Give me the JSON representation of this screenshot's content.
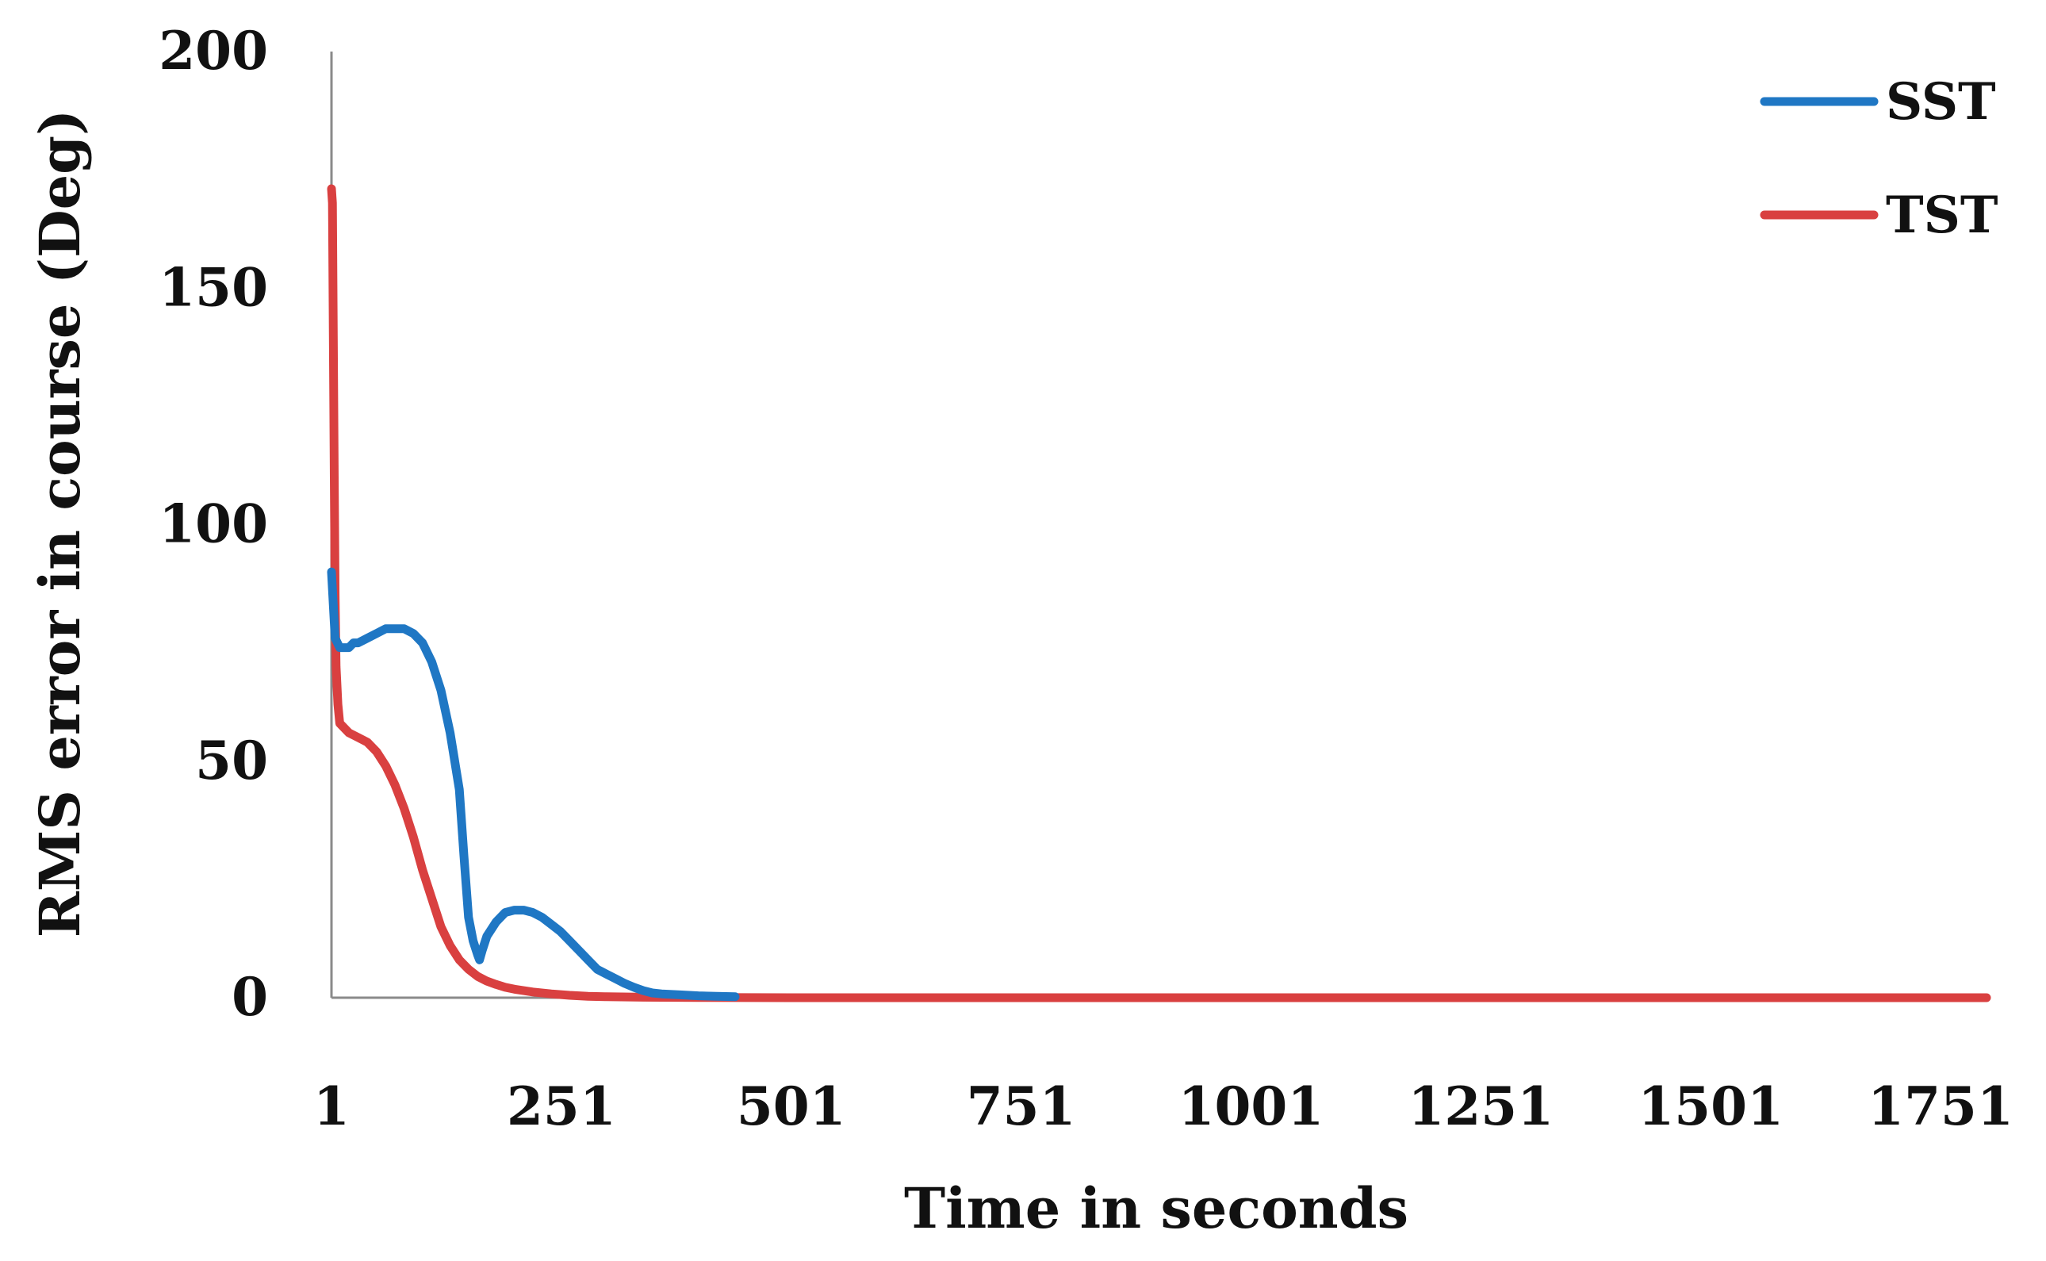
{
  "chart_data": {
    "type": "line",
    "xlabel": "Time in seconds",
    "ylabel": "RMS error in course (Deg)",
    "xlim": [
      1,
      1801
    ],
    "ylim": [
      0,
      200
    ],
    "x_ticks": [
      "1",
      "251",
      "501",
      "751",
      "1001",
      "1251",
      "1501",
      "1751"
    ],
    "y_ticks": [
      "0",
      "50",
      "100",
      "150",
      "200"
    ],
    "grid": false,
    "legend_position": "top-right",
    "series": [
      {
        "name": "SST",
        "color": "#1f77c4",
        "x": [
          1,
          5,
          10,
          15,
          20,
          25,
          30,
          40,
          50,
          60,
          70,
          80,
          90,
          100,
          110,
          120,
          130,
          140,
          145,
          150,
          155,
          160,
          162,
          165,
          170,
          180,
          190,
          200,
          210,
          220,
          230,
          240,
          250,
          260,
          270,
          280,
          290,
          300,
          310,
          320,
          330,
          340,
          350,
          360,
          380,
          400,
          420,
          440
        ],
        "values": [
          90,
          76,
          74,
          74,
          74,
          75,
          75,
          76,
          77,
          78,
          78,
          78,
          77,
          75,
          71,
          65,
          56,
          44,
          30,
          17,
          12,
          9,
          8,
          10,
          13,
          16,
          18,
          18.5,
          18.5,
          18,
          17,
          15.5,
          14,
          12,
          10,
          8,
          6,
          5,
          4,
          3,
          2.2,
          1.5,
          1,
          0.8,
          0.6,
          0.4,
          0.3,
          0.2
        ]
      },
      {
        "name": "TST",
        "color": "#d94040",
        "x": [
          1,
          2,
          3,
          4,
          5,
          6,
          8,
          10,
          15,
          20,
          30,
          40,
          50,
          60,
          70,
          80,
          90,
          100,
          110,
          120,
          130,
          140,
          150,
          160,
          170,
          180,
          190,
          200,
          220,
          240,
          260,
          280,
          300,
          340,
          400,
          500,
          600,
          800,
          1000,
          1200,
          1400,
          1600,
          1801
        ],
        "values": [
          171,
          168,
          140,
          110,
          85,
          70,
          62,
          58,
          57,
          56,
          55,
          54,
          52,
          49,
          45,
          40,
          34,
          27,
          21,
          15,
          11,
          8,
          6,
          4.5,
          3.5,
          2.8,
          2.2,
          1.8,
          1.2,
          0.8,
          0.5,
          0.3,
          0.2,
          0.1,
          0.05,
          0,
          0,
          0,
          0,
          0,
          0,
          0,
          0
        ]
      }
    ]
  }
}
